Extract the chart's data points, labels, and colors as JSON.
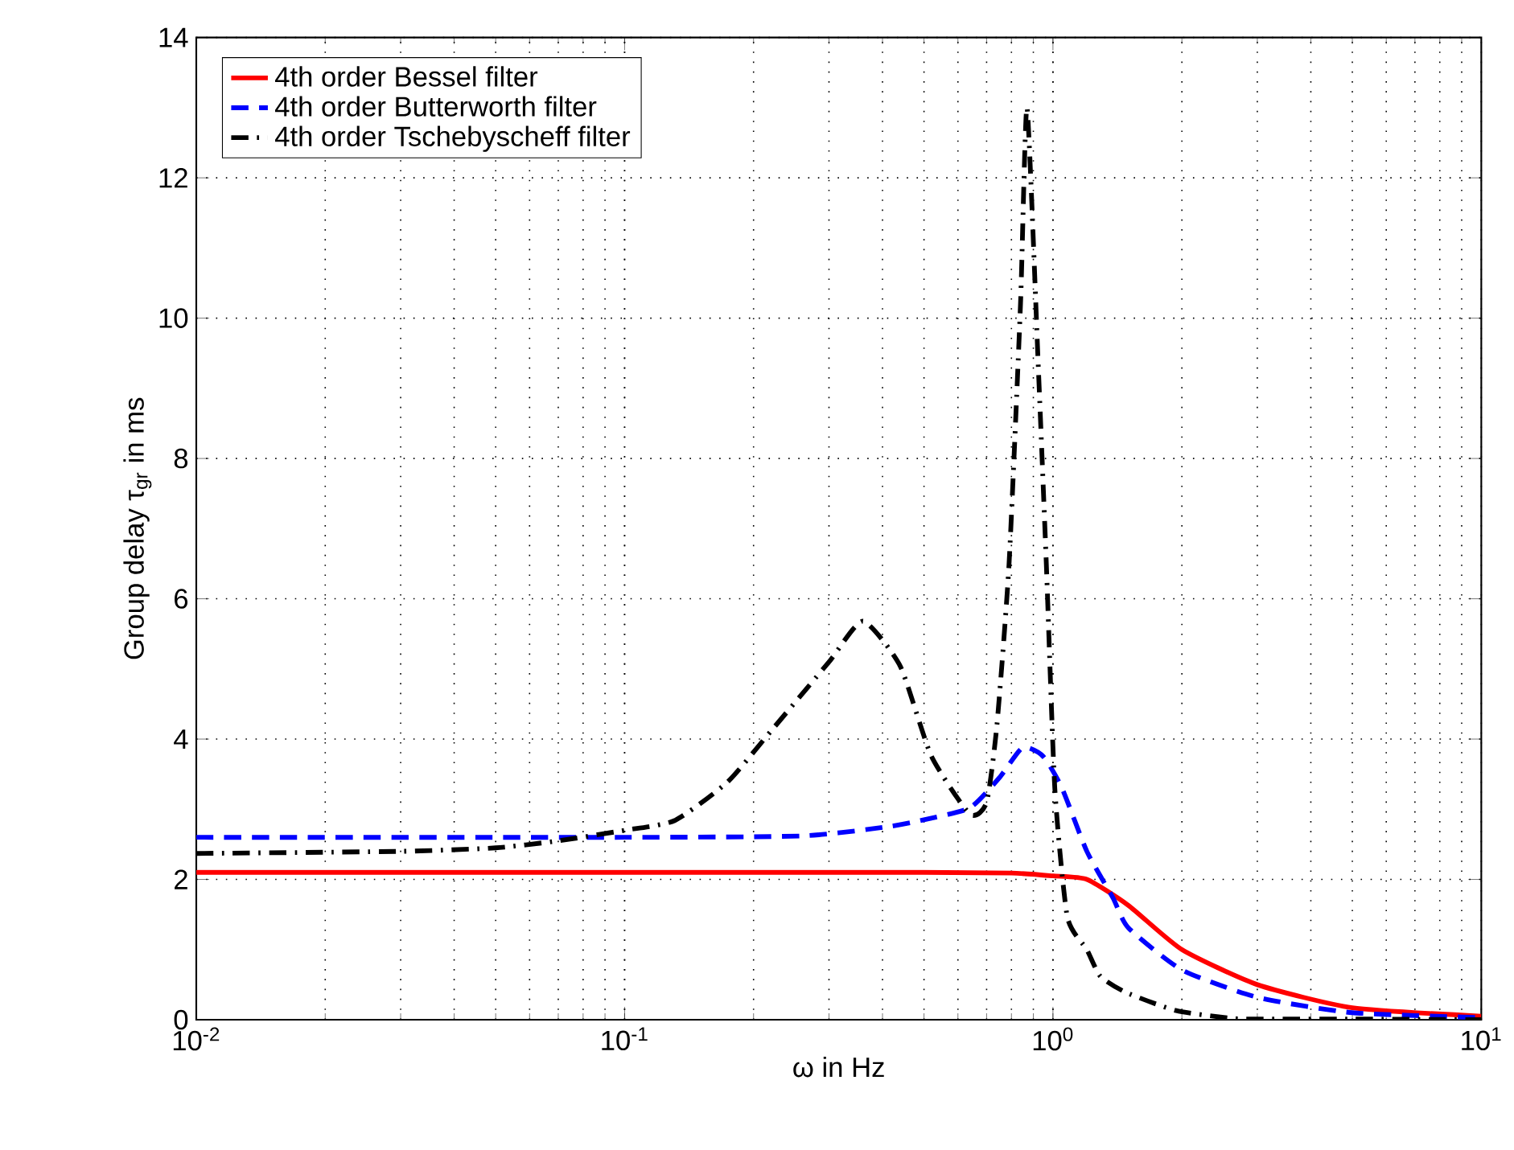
{
  "chart_data": {
    "type": "line",
    "xlabel": "ω in Hz",
    "ylabel": "Group delay τ$_{gr}$ in ms",
    "log": "x",
    "grid": true,
    "legend": "top left",
    "xlim": [
      0.01,
      10
    ],
    "ylim": [
      0,
      14
    ],
    "xticks": [
      {
        "value": 0.01,
        "label": "10$^{-2}$"
      },
      {
        "value": 0.1,
        "label": "10$^{-1}$"
      },
      {
        "value": 1,
        "label": "10$^{0}$"
      },
      {
        "value": 10,
        "label": "10$^{1}$"
      }
    ],
    "yticks": [
      0,
      2,
      4,
      6,
      8,
      10,
      12,
      14
    ],
    "series": [
      {
        "name": "4th order Bessel filter",
        "color": "#ff0000",
        "line_style": "solid",
        "x": [
          0.01,
          0.1,
          0.5,
          0.8,
          1.0,
          1.2,
          1.5,
          2,
          3,
          5,
          10
        ],
        "values": [
          2.1,
          2.1,
          2.1,
          2.09,
          2.05,
          2.0,
          1.63,
          1.0,
          0.5,
          0.17,
          0.05
        ]
      },
      {
        "name": "4th order Butterworth filter",
        "color": "#0000ff",
        "line_style": "dashed",
        "x": [
          0.01,
          0.1,
          0.26,
          0.41,
          0.5,
          0.64,
          0.75,
          0.85,
          0.95,
          1.05,
          1.2,
          1.38,
          1.5,
          2,
          3,
          5,
          10
        ],
        "values": [
          2.6,
          2.6,
          2.62,
          2.75,
          2.85,
          3.02,
          3.45,
          3.88,
          3.75,
          3.3,
          2.4,
          1.74,
          1.31,
          0.71,
          0.32,
          0.1,
          0.03
        ]
      },
      {
        "name": "4th order Tschebyscheff filter",
        "color": "#000000",
        "line_style": "dashdot",
        "x": [
          0.01,
          0.03,
          0.05,
          0.07,
          0.1,
          0.131,
          0.174,
          0.22,
          0.3,
          0.36,
          0.44,
          0.52,
          0.64,
          0.7,
          0.74,
          0.79,
          0.84,
          0.87,
          0.925,
          0.965,
          1.01,
          1.08,
          1.2,
          1.29,
          1.48,
          1.94,
          2.6,
          3,
          5,
          10
        ],
        "values": [
          2.37,
          2.4,
          2.45,
          2.55,
          2.7,
          2.84,
          3.39,
          4.12,
          5.1,
          5.68,
          5.04,
          3.76,
          2.93,
          3.1,
          4.2,
          6.5,
          10.2,
          13.0,
          9.26,
          6.5,
          3.3,
          1.47,
          1.0,
          0.62,
          0.39,
          0.13,
          0.02,
          0.01,
          0.01,
          0.0
        ]
      }
    ]
  }
}
